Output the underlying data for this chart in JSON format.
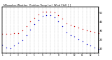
{
  "title": "Milwaukee Weather  Outdoor Temp (vs)  Wind Chill  [ ]",
  "temp_x": [
    0,
    1,
    2,
    3,
    4,
    5,
    6,
    7,
    8,
    9,
    10,
    11,
    12,
    13,
    14,
    15,
    16,
    17,
    18,
    19,
    20,
    21,
    22,
    23,
    24
  ],
  "temp_y": [
    26,
    26,
    26,
    27,
    27,
    30,
    35,
    40,
    44,
    48,
    51,
    51,
    51,
    50,
    47,
    43,
    38,
    36,
    35,
    33,
    32,
    30,
    29,
    28,
    27
  ],
  "chill_x": [
    0,
    1,
    2,
    3,
    4,
    5,
    6,
    7,
    8,
    9,
    10,
    11,
    12,
    13,
    14,
    15,
    16,
    17,
    18,
    19,
    20,
    21,
    22,
    23,
    24
  ],
  "chill_y": [
    14,
    11,
    10,
    13,
    16,
    19,
    25,
    31,
    37,
    42,
    46,
    47,
    47,
    45,
    40,
    35,
    28,
    25,
    23,
    20,
    18,
    15,
    13,
    11,
    9
  ],
  "temp_color": "#cc0000",
  "chill_color": "#0000cc",
  "bg_color": "#ffffff",
  "grid_color": "#999999",
  "ylim": [
    5,
    56
  ],
  "xlim": [
    0,
    24
  ],
  "yticks": [
    10,
    20,
    30,
    40,
    50
  ],
  "ytick_labels": [
    "10",
    "20",
    "30",
    "40",
    "50"
  ]
}
